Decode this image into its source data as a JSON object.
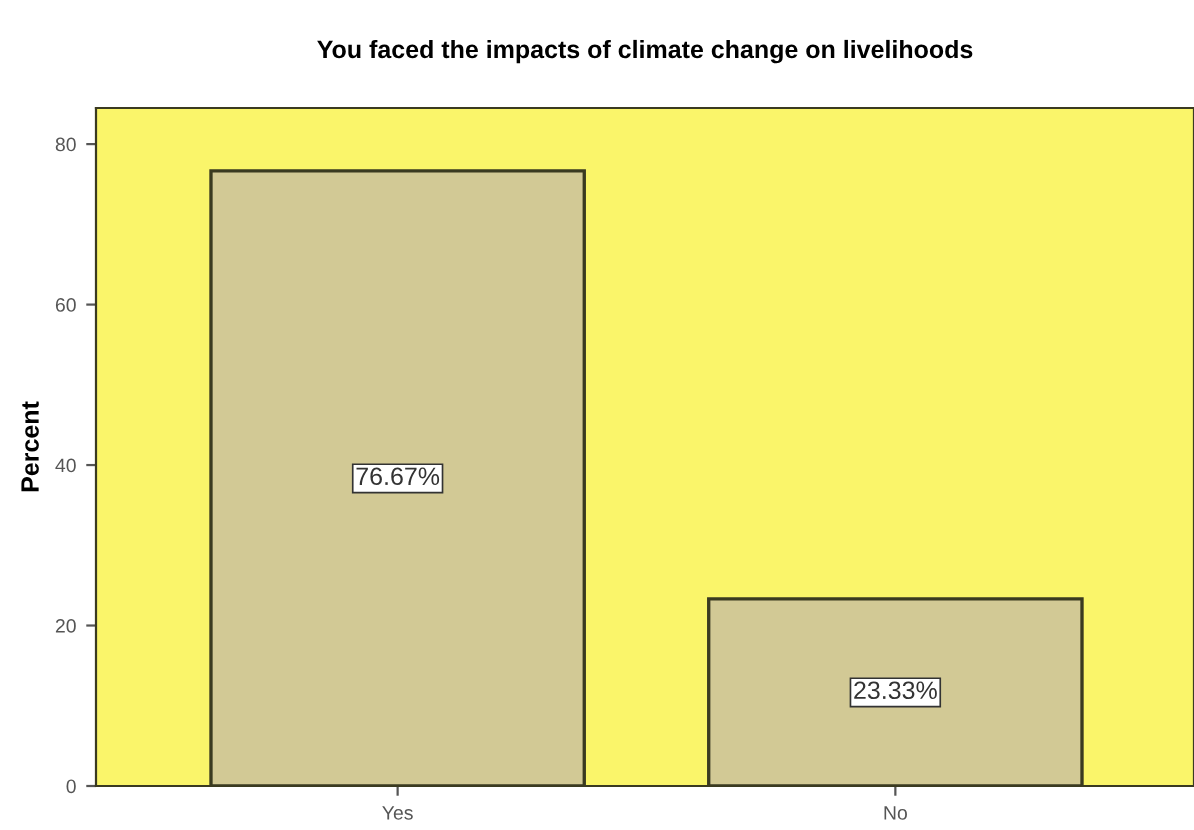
{
  "chart_data": {
    "type": "bar",
    "title": "You faced the impacts of climate change on livelihoods",
    "ylabel": "Percent",
    "categories": [
      "Yes",
      "No"
    ],
    "values": [
      76.67,
      23.33
    ],
    "value_labels": [
      "76.67%",
      "23.33%"
    ],
    "color": "#d2c995",
    "ylim": [
      0,
      84.5
    ],
    "yticks": [
      0,
      20,
      40,
      60,
      80
    ],
    "grid": false,
    "legend": false
  }
}
